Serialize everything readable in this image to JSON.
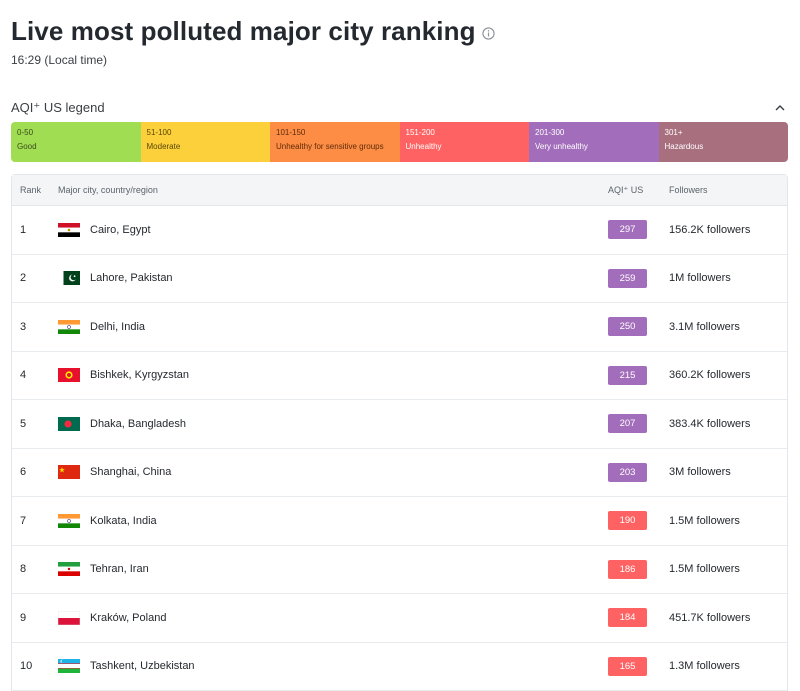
{
  "header": {
    "title": "Live most polluted major city ranking",
    "local_time": "16:29 (Local time)"
  },
  "legend": {
    "title": "AQI⁺ US legend",
    "segments": [
      {
        "range": "0-50",
        "level": "Good",
        "color": "#a0dd52",
        "text_color": "#3b4a1c"
      },
      {
        "range": "51-100",
        "level": "Moderate",
        "color": "#fbd03b",
        "text_color": "#5a4708"
      },
      {
        "range": "101-150",
        "level": "Unhealthy for sensitive groups",
        "color": "#fd8c44",
        "text_color": "#5e2d0b"
      },
      {
        "range": "151-200",
        "level": "Unhealthy",
        "color": "#fe6262",
        "text_color": "#ffffff"
      },
      {
        "range": "201-300",
        "level": "Very unhealthy",
        "color": "#a26dba",
        "text_color": "#ffffff"
      },
      {
        "range": "301+",
        "level": "Hazardous",
        "color": "#a86f7f",
        "text_color": "#ffffff"
      }
    ]
  },
  "table": {
    "headers": {
      "rank": "Rank",
      "city": "Major city, country/region",
      "aqi": "AQI⁺ US",
      "followers": "Followers"
    },
    "rows": [
      {
        "rank": "1",
        "city": "Cairo, Egypt",
        "flag": "egypt",
        "aqi": "297",
        "aqi_color": "#a26dba",
        "followers": "156.2K followers"
      },
      {
        "rank": "2",
        "city": "Lahore, Pakistan",
        "flag": "pakistan",
        "aqi": "259",
        "aqi_color": "#a26dba",
        "followers": "1M followers"
      },
      {
        "rank": "3",
        "city": "Delhi, India",
        "flag": "india",
        "aqi": "250",
        "aqi_color": "#a26dba",
        "followers": "3.1M followers"
      },
      {
        "rank": "4",
        "city": "Bishkek, Kyrgyzstan",
        "flag": "kyrgyzstan",
        "aqi": "215",
        "aqi_color": "#a26dba",
        "followers": "360.2K followers"
      },
      {
        "rank": "5",
        "city": "Dhaka, Bangladesh",
        "flag": "bangladesh",
        "aqi": "207",
        "aqi_color": "#a26dba",
        "followers": "383.4K followers"
      },
      {
        "rank": "6",
        "city": "Shanghai, China",
        "flag": "china",
        "aqi": "203",
        "aqi_color": "#a26dba",
        "followers": "3M followers"
      },
      {
        "rank": "7",
        "city": "Kolkata, India",
        "flag": "india",
        "aqi": "190",
        "aqi_color": "#fe6262",
        "followers": "1.5M followers"
      },
      {
        "rank": "8",
        "city": "Tehran, Iran",
        "flag": "iran",
        "aqi": "186",
        "aqi_color": "#fe6262",
        "followers": "1.5M followers"
      },
      {
        "rank": "9",
        "city": "Kraków, Poland",
        "flag": "poland",
        "aqi": "184",
        "aqi_color": "#fe6262",
        "followers": "451.7K followers"
      },
      {
        "rank": "10",
        "city": "Tashkent, Uzbekistan",
        "flag": "uzbekistan",
        "aqi": "165",
        "aqi_color": "#fe6262",
        "followers": "1.3M followers"
      }
    ]
  }
}
